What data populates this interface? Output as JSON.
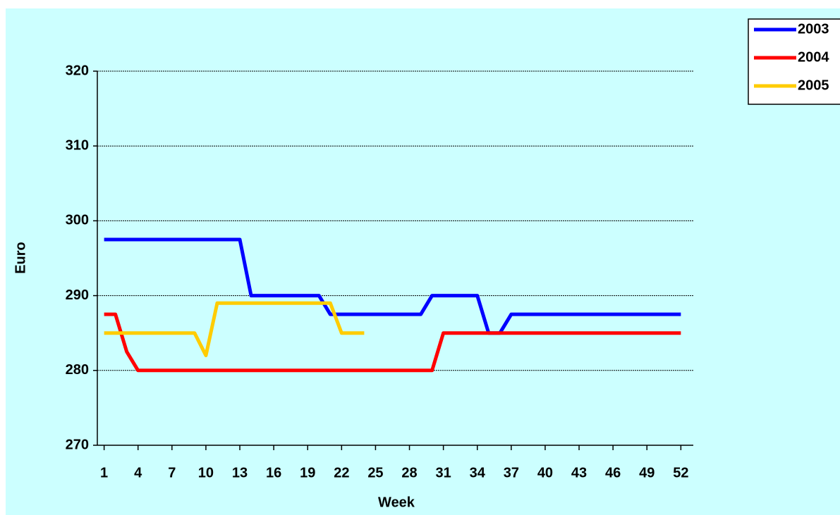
{
  "chart_data": {
    "type": "line",
    "x": [
      1,
      2,
      3,
      4,
      5,
      6,
      7,
      8,
      9,
      10,
      11,
      12,
      13,
      14,
      15,
      16,
      17,
      18,
      19,
      20,
      21,
      22,
      23,
      24,
      25,
      26,
      27,
      28,
      29,
      30,
      31,
      32,
      33,
      34,
      35,
      36,
      37,
      38,
      39,
      40,
      41,
      42,
      43,
      44,
      45,
      46,
      47,
      48,
      49,
      50,
      51,
      52
    ],
    "series": [
      {
        "name": "2003",
        "color": "#0000ff",
        "values": [
          297.5,
          297.5,
          297.5,
          297.5,
          297.5,
          297.5,
          297.5,
          297.5,
          297.5,
          297.5,
          297.5,
          297.5,
          297.5,
          290,
          290,
          290,
          290,
          290,
          290,
          290,
          287.5,
          287.5,
          287.5,
          287.5,
          287.5,
          287.5,
          287.5,
          287.5,
          287.5,
          290,
          290,
          290,
          290,
          290,
          285,
          285,
          287.5,
          287.5,
          287.5,
          287.5,
          287.5,
          287.5,
          287.5,
          287.5,
          287.5,
          287.5,
          287.5,
          287.5,
          287.5,
          287.5,
          287.5,
          287.5
        ]
      },
      {
        "name": "2004",
        "color": "#ff0000",
        "values": [
          287.5,
          287.5,
          282.5,
          280,
          280,
          280,
          280,
          280,
          280,
          280,
          280,
          280,
          280,
          280,
          280,
          280,
          280,
          280,
          280,
          280,
          280,
          280,
          280,
          280,
          280,
          280,
          280,
          280,
          280,
          280,
          285,
          285,
          285,
          285,
          285,
          285,
          285,
          285,
          285,
          285,
          285,
          285,
          285,
          285,
          285,
          285,
          285,
          285,
          285,
          285,
          285,
          285
        ]
      },
      {
        "name": "2005",
        "color": "#ffcc00",
        "values": [
          285,
          285,
          285,
          285,
          285,
          285,
          285,
          285,
          285,
          282,
          289,
          289,
          289,
          289,
          289,
          289,
          289,
          289,
          289,
          289,
          289,
          285,
          285,
          285,
          null,
          null,
          null,
          null,
          null,
          null,
          null,
          null,
          null,
          null,
          null,
          null,
          null,
          null,
          null,
          null,
          null,
          null,
          null,
          null,
          null,
          null,
          null,
          null,
          null,
          null,
          null,
          null
        ]
      }
    ],
    "x_label": "Week",
    "y_label": "Euro",
    "xlim": [
      0.4,
      53.1
    ],
    "xticks": [
      1,
      4,
      7,
      10,
      13,
      16,
      19,
      22,
      25,
      28,
      31,
      34,
      37,
      40,
      43,
      46,
      49,
      52
    ],
    "ylim": [
      270,
      320
    ],
    "yticks": [
      270,
      280,
      290,
      300,
      310,
      320
    ],
    "grid": true,
    "legend": "top-right"
  }
}
